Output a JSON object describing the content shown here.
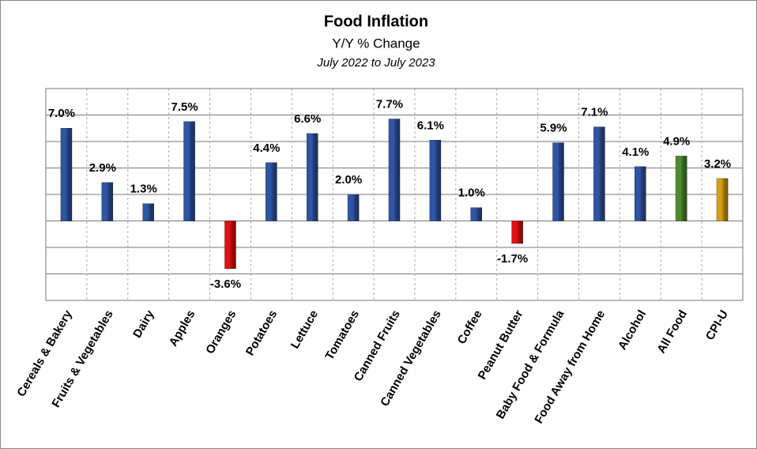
{
  "chart_data": {
    "type": "bar",
    "title": "Food Inflation",
    "subtitle": "Y/Y % Change",
    "period": "July 2022 to July 2023",
    "categories": [
      "Cereals & Bakery",
      "Fruits & Vegetables",
      "Dairy",
      "Apples",
      "Oranges",
      "Potatoes",
      "Lettuce",
      "Tomatoes",
      "Canned Fruits",
      "Canned Vegetables",
      "Coffee",
      "Peanut Butter",
      "Baby Food & Formula",
      "Food Away from Home",
      "Alcohol",
      "All Food",
      "CPI-U"
    ],
    "values": [
      7.0,
      2.9,
      1.3,
      7.5,
      -3.6,
      4.4,
      6.6,
      2.0,
      7.7,
      6.1,
      1.0,
      -1.7,
      5.9,
      7.1,
      4.1,
      4.9,
      3.2
    ],
    "value_labels": [
      "7.0%",
      "2.9%",
      "1.3%",
      "7.5%",
      "-3.6%",
      "4.4%",
      "6.6%",
      "2.0%",
      "7.7%",
      "6.1%",
      "1.0%",
      "-1.7%",
      "5.9%",
      "7.1%",
      "4.1%",
      "4.9%",
      "3.2%"
    ],
    "colors": [
      "#2f55a4",
      "#2f55a4",
      "#2f55a4",
      "#2f55a4",
      "#e01010",
      "#2f55a4",
      "#2f55a4",
      "#2f55a4",
      "#2f55a4",
      "#2f55a4",
      "#2f55a4",
      "#e01010",
      "#2f55a4",
      "#2f55a4",
      "#2f55a4",
      "#4f8a2e",
      "#d4a010"
    ],
    "ylim": [
      -6,
      10
    ],
    "yticks": [
      -6,
      -4,
      -2,
      0,
      2,
      4,
      6,
      8,
      10
    ],
    "grid": true
  }
}
